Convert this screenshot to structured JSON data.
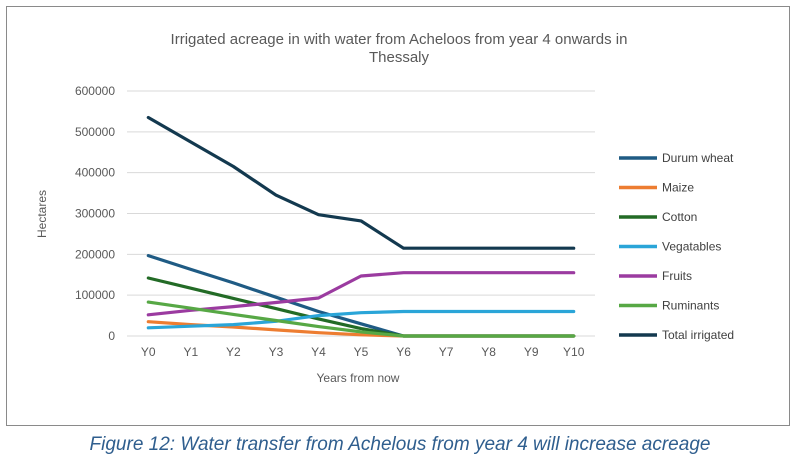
{
  "chart_data": {
    "type": "line",
    "title_lines": [
      "Irrigated acreage in with water from Acheloos from year 4 onwards in",
      "Thessaly"
    ],
    "xlabel": "Years from now",
    "ylabel": "Hectares",
    "categories": [
      "Y0",
      "Y1",
      "Y2",
      "Y3",
      "Y4",
      "Y5",
      "Y6",
      "Y7",
      "Y8",
      "Y9",
      "Y10"
    ],
    "ylim": [
      0,
      600000
    ],
    "yticks": [
      0,
      100000,
      200000,
      300000,
      400000,
      500000,
      600000
    ],
    "ytick_labels": [
      "0",
      "100000",
      "200000",
      "300000",
      "400000",
      "500000",
      "600000"
    ],
    "grid": true,
    "legend_position": "right",
    "series": [
      {
        "name": "Durum wheat",
        "color": "#1f5b84",
        "values": [
          197000,
          163000,
          130000,
          95000,
          60000,
          30000,
          0,
          0,
          0,
          0,
          0
        ]
      },
      {
        "name": "Maize",
        "color": "#ed7d31",
        "values": [
          35000,
          28000,
          22000,
          15000,
          8000,
          3000,
          0,
          0,
          0,
          0,
          0
        ]
      },
      {
        "name": "Cotton",
        "color": "#236b26",
        "values": [
          142000,
          117000,
          92000,
          67000,
          42000,
          18000,
          0,
          0,
          0,
          0,
          0
        ]
      },
      {
        "name": "Vegatables",
        "color": "#2aa5d8",
        "values": [
          20000,
          24000,
          28000,
          36000,
          50000,
          57000,
          60000,
          60000,
          60000,
          60000,
          60000
        ]
      },
      {
        "name": "Fruits",
        "color": "#9b3ba0",
        "values": [
          52000,
          63000,
          72000,
          82000,
          93000,
          147000,
          155000,
          155000,
          155000,
          155000,
          155000
        ]
      },
      {
        "name": "Ruminants",
        "color": "#57a845",
        "values": [
          83000,
          68000,
          53000,
          38000,
          23000,
          10000,
          0,
          0,
          0,
          0,
          0
        ]
      },
      {
        "name": "Total irrigated",
        "color": "#13394f",
        "values": [
          535000,
          475000,
          415000,
          345000,
          297000,
          282000,
          215000,
          215000,
          215000,
          215000,
          215000
        ]
      }
    ]
  },
  "caption": "Figure 12: Water transfer from Achelous from year 4 will increase acreage"
}
